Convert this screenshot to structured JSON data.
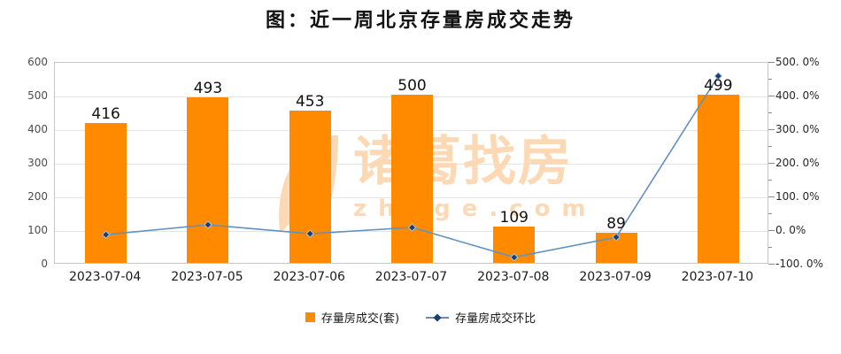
{
  "title": "图：近一周北京存量房成交走势",
  "watermark": {
    "brand": "诸葛找房",
    "domain": "zhuge.com"
  },
  "chart_data": {
    "type": "combo-bar-line",
    "categories": [
      "2023-07-04",
      "2023-07-05",
      "2023-07-06",
      "2023-07-07",
      "2023-07-08",
      "2023-07-09",
      "2023-07-10"
    ],
    "series": [
      {
        "name": "存量房成交(套)",
        "type": "bar",
        "y_axis": "left",
        "color": "#ff8a00",
        "values": [
          416,
          493,
          453,
          500,
          109,
          89,
          499
        ]
      },
      {
        "name": "存量房成交环比",
        "type": "line",
        "y_axis": "right",
        "color": "#6191c1",
        "marker": "diamond",
        "marker_color": "#1c3e6e",
        "values_percent": [
          -11,
          18.5,
          -8.1,
          10.4,
          -78.2,
          -18.3,
          460.7
        ]
      }
    ],
    "left_axis": {
      "min": 0,
      "max": 600,
      "tick_labels": [
        "0",
        "100",
        "200",
        "300",
        "400",
        "500",
        "600"
      ]
    },
    "right_axis": {
      "min": -100,
      "max": 500,
      "tick_labels": [
        "-100. 0%",
        "0. 0%",
        "100. 0%",
        "200. 0%",
        "300. 0%",
        "400. 0%",
        "500. 0%"
      ]
    },
    "grid": true,
    "legend_position": "bottom",
    "colors": {
      "grid": "#e4e4e4",
      "plot_border": "#c6c6c6",
      "axis_text_left": "#4d4d4d",
      "axis_text_right": "#262626",
      "value_label_text": "#111111",
      "watermark": "#fbd9b5"
    }
  }
}
